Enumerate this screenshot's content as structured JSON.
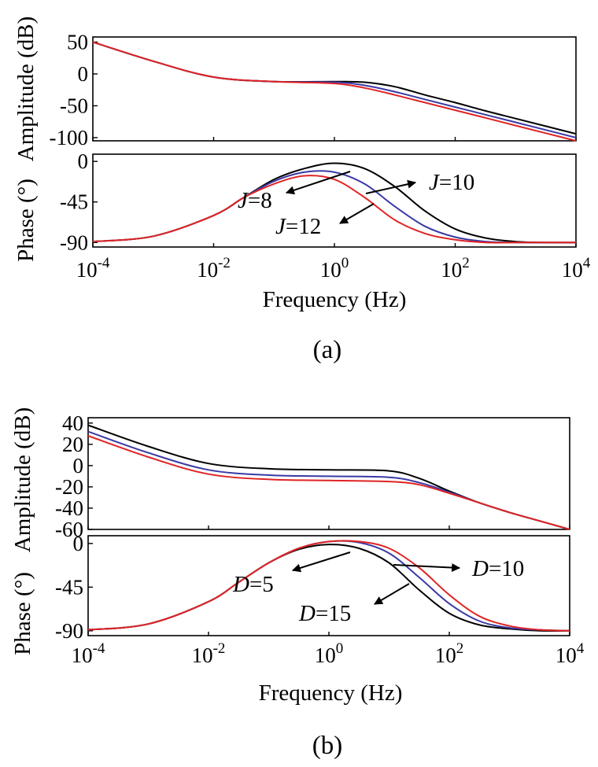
{
  "colors": {
    "black": "#000000",
    "blue": "#3a3aa6",
    "red": "#e02424"
  },
  "chart_data": [
    {
      "type": "line",
      "id": "a",
      "caption": "(a)",
      "xlabel": "Frequency (Hz)",
      "x_scale": "log",
      "xlim_exp": [
        -4,
        4
      ],
      "x_ticks": [
        {
          "base": "10",
          "exp": "-4"
        },
        {
          "base": "10",
          "exp": "-2"
        },
        {
          "base": "10",
          "exp": "0"
        },
        {
          "base": "10",
          "exp": "2"
        },
        {
          "base": "10",
          "exp": "4"
        }
      ],
      "amplitude": {
        "ylabel": "Amplitude (dB)",
        "ylim": [
          -105,
          58
        ],
        "yticks": [
          "50",
          "0",
          "-50",
          "-100"
        ],
        "ytick_values": [
          50,
          0,
          -50,
          -100
        ],
        "series": [
          {
            "name": "J=10",
            "color": "black",
            "x_exp": [
              -4,
              -3,
              -2,
              -1,
              0,
              0.5,
              1,
              1.5,
              2,
              2.5,
              3,
              3.5,
              4
            ],
            "values": [
              50,
              20,
              -5,
              -12,
              -12,
              -13,
              -20,
              -33,
              -45,
              -58,
              -70,
              -82,
              -94
            ]
          },
          {
            "name": "J=8",
            "color": "blue",
            "x_exp": [
              -4,
              -3,
              -2,
              -1,
              0,
              0.5,
              1,
              1.5,
              2,
              2.5,
              3,
              3.5,
              4
            ],
            "values": [
              50,
              20,
              -5,
              -12,
              -13,
              -18,
              -28,
              -40,
              -52,
              -64,
              -76,
              -88,
              -100
            ]
          },
          {
            "name": "J=12",
            "color": "red",
            "x_exp": [
              -4,
              -3,
              -2,
              -1,
              0,
              0.5,
              1,
              1.5,
              2,
              2.5,
              3,
              3.5,
              4
            ],
            "values": [
              50,
              20,
              -5,
              -12,
              -15,
              -22,
              -33,
              -45,
              -57,
              -69,
              -81,
              -93,
              -105
            ]
          }
        ]
      },
      "phase": {
        "ylabel": "Phase (°)",
        "ylim": [
          -95,
          8
        ],
        "yticks": [
          "0",
          "-45",
          "-90"
        ],
        "ytick_values": [
          0,
          -45,
          -90
        ],
        "series": [
          {
            "name": "J=10",
            "color": "black",
            "x_exp": [
              -4,
              -3,
              -2,
              -1.5,
              -1,
              -0.5,
              0,
              0.5,
              1,
              1.5,
              2,
              2.5,
              3,
              3.5,
              4
            ],
            "values": [
              -89,
              -83,
              -60,
              -40,
              -20,
              -8,
              -2,
              -8,
              -28,
              -55,
              -75,
              -85,
              -89,
              -90,
              -90
            ]
          },
          {
            "name": "J=8",
            "color": "blue",
            "x_exp": [
              -4,
              -3,
              -2,
              -1.5,
              -1,
              -0.5,
              0,
              0.5,
              1,
              1.5,
              2,
              2.5,
              3,
              3.5,
              4
            ],
            "values": [
              -89,
              -83,
              -60,
              -40,
              -22,
              -12,
              -12,
              -25,
              -50,
              -72,
              -84,
              -89,
              -90,
              -90,
              -90
            ]
          },
          {
            "name": "J=12",
            "color": "red",
            "x_exp": [
              -4,
              -3,
              -2,
              -1.5,
              -1,
              -0.5,
              0,
              0.5,
              1,
              1.5,
              2,
              2.5,
              3,
              3.5,
              4
            ],
            "values": [
              -89,
              -83,
              -60,
              -40,
              -25,
              -16,
              -20,
              -40,
              -65,
              -80,
              -87,
              -90,
              -90,
              -90,
              -90
            ]
          }
        ],
        "annotations": [
          {
            "var": "J",
            "text": "=8"
          },
          {
            "var": "J",
            "text": "=10"
          },
          {
            "var": "J",
            "text": "=12"
          }
        ]
      }
    },
    {
      "type": "line",
      "id": "b",
      "caption": "(b)",
      "xlabel": "Frequency (Hz)",
      "x_scale": "log",
      "xlim_exp": [
        -4,
        4
      ],
      "x_ticks": [
        {
          "base": "10",
          "exp": "-4"
        },
        {
          "base": "10",
          "exp": "-2"
        },
        {
          "base": "10",
          "exp": "0"
        },
        {
          "base": "10",
          "exp": "2"
        },
        {
          "base": "10",
          "exp": "4"
        }
      ],
      "amplitude": {
        "ylabel": "Amplitude (dB)",
        "ylim": [
          -60,
          45
        ],
        "yticks": [
          "40",
          "20",
          "0",
          "-20",
          "-40",
          "-60"
        ],
        "ytick_values": [
          40,
          20,
          0,
          -20,
          -40,
          -60
        ],
        "series": [
          {
            "name": "D=5",
            "color": "black",
            "x_exp": [
              -4,
              -3,
              -2,
              -1,
              0,
              1,
              1.5,
              2,
              2.5,
              3,
              3.5,
              4
            ],
            "values": [
              38,
              18,
              2,
              -3,
              -4,
              -5,
              -12,
              -24,
              -35,
              -44,
              -52,
              -60
            ]
          },
          {
            "name": "D=10",
            "color": "blue",
            "x_exp": [
              -4,
              -3,
              -2,
              -1,
              0,
              1,
              1.5,
              2,
              2.5,
              3,
              3.5,
              4
            ],
            "values": [
              32,
              12,
              -4,
              -9,
              -10,
              -11,
              -16,
              -25,
              -35,
              -44,
              -52,
              -60
            ]
          },
          {
            "name": "D=15",
            "color": "red",
            "x_exp": [
              -4,
              -3,
              -2,
              -1,
              0,
              1,
              1.5,
              2,
              2.5,
              3,
              3.5,
              4
            ],
            "values": [
              28,
              8,
              -8,
              -13,
              -14,
              -15,
              -18,
              -26,
              -35,
              -44,
              -52,
              -60
            ]
          }
        ]
      },
      "phase": {
        "ylabel": "Phase (°)",
        "ylim": [
          -95,
          8
        ],
        "yticks": [
          "0",
          "-45",
          "-90"
        ],
        "ytick_values": [
          0,
          -45,
          -90
        ],
        "series": [
          {
            "name": "D=5",
            "color": "black",
            "x_exp": [
              -4,
              -3,
              -2,
              -1.5,
              -1,
              -0.5,
              0,
              0.5,
              1,
              1.5,
              2,
              2.5,
              3,
              3.5,
              4
            ],
            "values": [
              -89,
              -83,
              -60,
              -40,
              -20,
              -6,
              -1,
              -5,
              -20,
              -48,
              -72,
              -84,
              -88,
              -90,
              -90
            ]
          },
          {
            "name": "D=10",
            "color": "blue",
            "x_exp": [
              -4,
              -3,
              -2,
              -1.5,
              -1,
              -0.5,
              0,
              0.5,
              1,
              1.5,
              2,
              2.5,
              3,
              3.5,
              4
            ],
            "values": [
              -89,
              -83,
              -60,
              -40,
              -20,
              -5,
              2,
              1,
              -10,
              -35,
              -62,
              -80,
              -87,
              -89,
              -90
            ]
          },
          {
            "name": "D=15",
            "color": "red",
            "x_exp": [
              -4,
              -3,
              -2,
              -1.5,
              -1,
              -0.5,
              0,
              0.5,
              1,
              1.5,
              2,
              2.5,
              3,
              3.5,
              4
            ],
            "values": [
              -89,
              -83,
              -60,
              -40,
              -20,
              -5,
              2,
              2,
              -5,
              -25,
              -53,
              -75,
              -85,
              -89,
              -90
            ]
          }
        ],
        "annotations": [
          {
            "var": "D",
            "text": "=5"
          },
          {
            "var": "D",
            "text": "=10"
          },
          {
            "var": "D",
            "text": "=15"
          }
        ]
      }
    }
  ]
}
